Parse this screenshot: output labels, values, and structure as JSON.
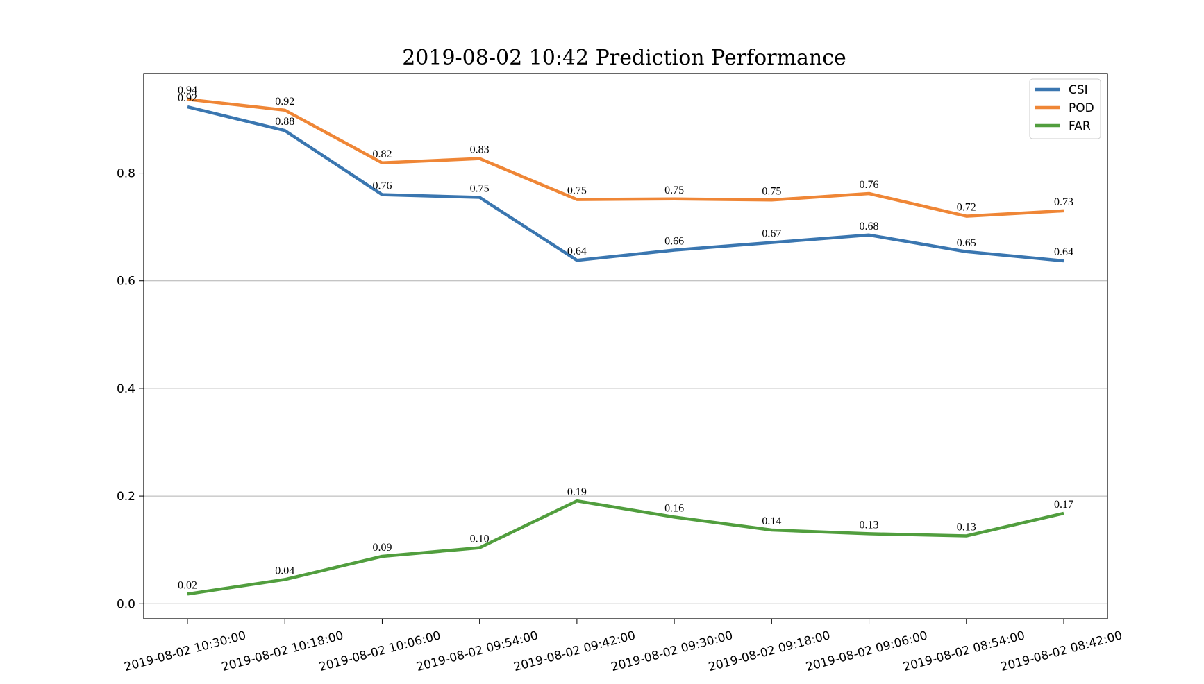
{
  "chart_data": {
    "type": "line",
    "title": "2019-08-02 10:42 Prediction Performance",
    "xlabel": "",
    "ylabel": "",
    "categories": [
      "2019-08-02 10:30:00",
      "2019-08-02 10:18:00",
      "2019-08-02 10:06:00",
      "2019-08-02 09:54:00",
      "2019-08-02 09:42:00",
      "2019-08-02 09:30:00",
      "2019-08-02 09:18:00",
      "2019-08-02 09:06:00",
      "2019-08-02 08:54:00",
      "2019-08-02 08:42:00"
    ],
    "yticks": [
      "0.0",
      "0.2",
      "0.4",
      "0.6",
      "0.8"
    ],
    "ylim": [
      -0.028,
      0.985
    ],
    "grid": "horizontal",
    "legend_position": "top-right",
    "series": [
      {
        "name": "CSI",
        "color": "#3a76b0",
        "values": [
          0.923,
          0.879,
          0.76,
          0.755,
          0.638,
          0.657,
          0.671,
          0.685,
          0.654,
          0.637
        ],
        "labels": [
          "0.92",
          "0.88",
          "0.76",
          "0.75",
          "0.64",
          "0.66",
          "0.67",
          "0.68",
          "0.65",
          "0.64"
        ]
      },
      {
        "name": "POD",
        "color": "#ef8636",
        "values": [
          0.937,
          0.917,
          0.819,
          0.827,
          0.751,
          0.752,
          0.75,
          0.762,
          0.72,
          0.73
        ],
        "labels": [
          "0.94",
          "0.92",
          "0.82",
          "0.83",
          "0.75",
          "0.75",
          "0.75",
          "0.76",
          "0.72",
          "0.73"
        ]
      },
      {
        "name": "FAR",
        "color": "#519e3e",
        "values": [
          0.018,
          0.045,
          0.088,
          0.104,
          0.191,
          0.161,
          0.137,
          0.13,
          0.126,
          0.168
        ],
        "labels": [
          "0.02",
          "0.04",
          "0.09",
          "0.10",
          "0.19",
          "0.16",
          "0.14",
          "0.13",
          "0.13",
          "0.17"
        ]
      }
    ]
  }
}
